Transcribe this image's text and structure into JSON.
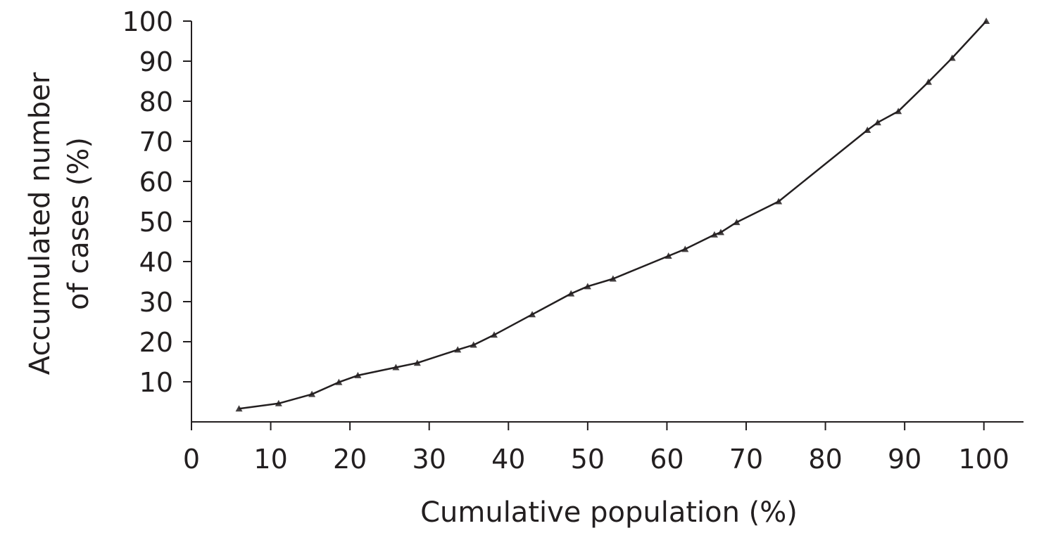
{
  "chart_data": {
    "type": "line",
    "xlabel": "Cumulative population (%)",
    "ylabel_lines": [
      "Accumulated number",
      "of cases (%)"
    ],
    "xlim": [
      0,
      105
    ],
    "ylim": [
      0,
      100
    ],
    "x_ticks": [
      0,
      10,
      20,
      30,
      40,
      50,
      60,
      70,
      80,
      90,
      100
    ],
    "y_ticks": [
      10,
      20,
      30,
      40,
      50,
      60,
      70,
      80,
      90,
      100
    ],
    "grid": false,
    "legend": "none",
    "marker": "triangle",
    "series": [
      {
        "x": [
          6.0,
          11.0,
          15.2,
          18.6,
          21.0,
          25.8,
          28.5,
          33.6,
          35.6,
          38.2,
          43.0,
          47.9,
          50.0,
          53.2,
          60.2,
          62.3,
          66.0,
          66.8,
          68.8,
          74.1,
          85.3,
          86.6,
          89.2,
          93.0,
          96.0,
          100.3
        ],
        "y": [
          3.3,
          4.6,
          6.9,
          9.9,
          11.6,
          13.6,
          14.7,
          18.0,
          19.2,
          21.7,
          26.8,
          32.0,
          33.8,
          35.7,
          41.4,
          43.1,
          46.7,
          47.3,
          49.8,
          55.0,
          72.8,
          74.7,
          77.5,
          84.8,
          90.8,
          100.0
        ]
      }
    ],
    "colors": {
      "line": "#231f20",
      "marker": "#231f20",
      "axis": "#231f20",
      "text": "#231f20"
    }
  }
}
